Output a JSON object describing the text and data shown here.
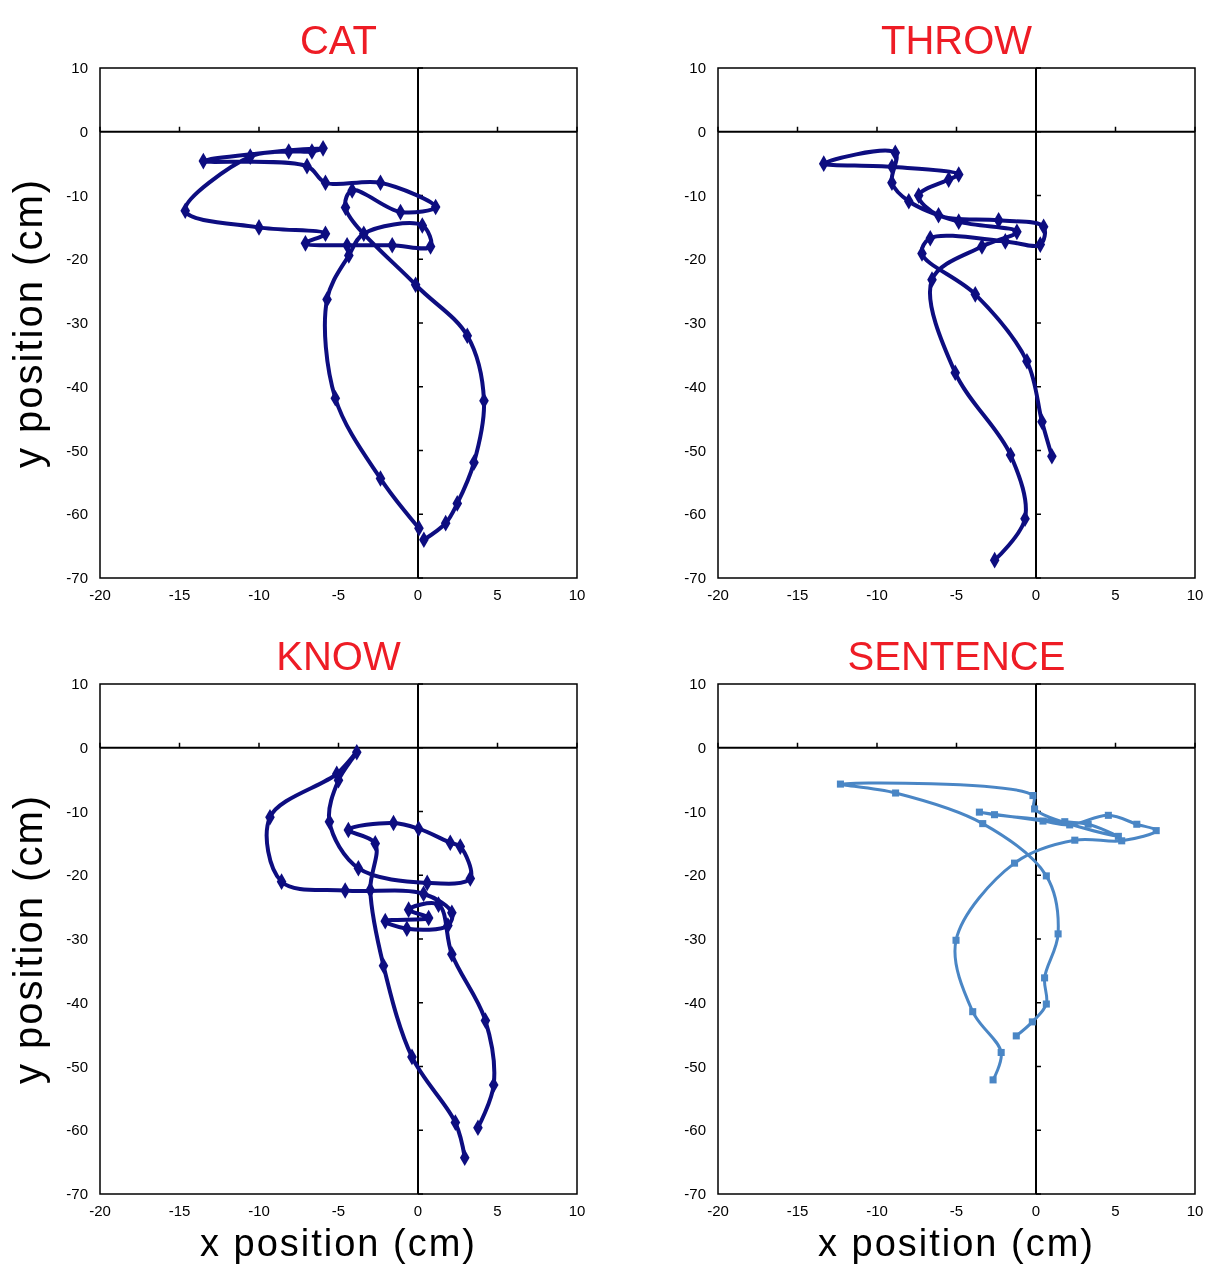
{
  "chart_data": [
    {
      "type": "line",
      "title": "CAT",
      "ylabel": "y position (cm)",
      "color": "#0d0d80",
      "marker": "diamond",
      "xlim": [
        -20,
        10
      ],
      "ylim": [
        -70,
        10
      ],
      "xticks": [
        -20,
        -15,
        -10,
        -5,
        0,
        5,
        10
      ],
      "yticks": [
        -70,
        -60,
        -50,
        -40,
        -30,
        -20,
        -10,
        0,
        10
      ],
      "x": [
        0.06,
        -2.36,
        -5.2,
        -5.72,
        -4.35,
        -3.41,
        0.27,
        0.79,
        -1.62,
        -4.46,
        -7.08,
        -5.82,
        -10.0,
        -14.64,
        -10.55,
        -8.13,
        -6.67,
        -5.97,
        -13.5,
        -6.98,
        -5.82,
        -2.36,
        1.11,
        -1.1,
        -4.14,
        -4.56,
        -0.15,
        3.1,
        4.15,
        3.52,
        2.47,
        1.74,
        0.37
      ],
      "values": [
        -62.2,
        -54.4,
        -41.8,
        -26.3,
        -19.4,
        -16.0,
        -14.7,
        -18.0,
        -17.8,
        -17.8,
        -17.5,
        -16.0,
        -15.0,
        -12.4,
        -3.9,
        -3.1,
        -3.1,
        -2.6,
        -4.6,
        -5.4,
        -8.0,
        -8.0,
        -11.8,
        -12.6,
        -9.2,
        -11.9,
        -24.0,
        -32,
        -42.2,
        -51.9,
        -58.3,
        -61.4,
        -64.0
      ]
    },
    {
      "type": "line",
      "title": "THROW",
      "color": "#0d0d80",
      "marker": "diamond",
      "xlim": [
        -20,
        10
      ],
      "ylim": [
        -70,
        10
      ],
      "xticks": [
        -20,
        -15,
        -10,
        -5,
        0,
        5,
        10
      ],
      "yticks": [
        -70,
        -60,
        -50,
        -40,
        -30,
        -20,
        -10,
        0,
        10
      ],
      "x": [
        -2.6,
        -0.69,
        -1.6,
        -5.08,
        -6.54,
        -3.4,
        -1.2,
        -4.86,
        -8.0,
        -9.06,
        -8.85,
        -13.35,
        -9.06,
        -4.86,
        -5.49,
        -7.38,
        -6.13,
        -2.35,
        0.48,
        0.27,
        -1.93,
        -6.65,
        -7.17,
        -3.82,
        -0.57,
        0.38,
        1.0
      ],
      "values": [
        -67.2,
        -60.7,
        -50.7,
        -37.8,
        -23.2,
        -18.0,
        -15.7,
        -14.1,
        -10.9,
        -8.0,
        -3.3,
        -5.0,
        -5.5,
        -6.7,
        -7.5,
        -10.0,
        -13.1,
        -13.9,
        -14.9,
        -17.7,
        -17.2,
        -16.7,
        -19.1,
        -25.5,
        -36.0,
        -45.5,
        -50.9
      ]
    },
    {
      "type": "line",
      "title": "KNOW",
      "xlabel": "x position (cm)",
      "ylabel": "y position (cm)",
      "color": "#0d0d80",
      "marker": "diamond",
      "xlim": [
        -20,
        10
      ],
      "ylim": [
        -70,
        10
      ],
      "xticks": [
        -20,
        -15,
        -10,
        -5,
        0,
        5,
        10
      ],
      "yticks": [
        -70,
        -60,
        -50,
        -40,
        -30,
        -20,
        -10,
        0,
        10
      ],
      "x": [
        2.94,
        2.35,
        -0.38,
        -2.17,
        -3.0,
        -2.69,
        -4.38,
        -1.54,
        0.04,
        2.03,
        2.66,
        3.29,
        0.58,
        -3.75,
        -5.57,
        -5.0,
        -3.85,
        -5.11,
        -9.31,
        -8.58,
        -4.58,
        0.35,
        2.13,
        1.88,
        -0.7,
        -2.06,
        0.67,
        -0.59,
        1.29,
        2.13,
        4.24,
        4.76,
        3.77
      ],
      "values": [
        -64.3,
        -58.8,
        -48.5,
        -34.2,
        -22.3,
        -15.0,
        -12.9,
        -11.8,
        -12.7,
        -14.9,
        -15.5,
        -20.5,
        -21.2,
        -18.9,
        -11.6,
        -5.1,
        -0.7,
        -4.1,
        -10.9,
        -21.0,
        -22.4,
        -22.9,
        -25.9,
        -27.9,
        -28.4,
        -27.2,
        -26.7,
        -25.4,
        -24.6,
        -32.4,
        -42.8,
        -52.9,
        -59.6
      ]
    },
    {
      "type": "line",
      "title": "SENTENCE",
      "xlabel": "x position (cm)",
      "color": "#4a86c5",
      "marker": "square",
      "xlim": [
        -20,
        10
      ],
      "ylim": [
        -70,
        10
      ],
      "xticks": [
        -20,
        -15,
        -10,
        -5,
        0,
        5,
        10
      ],
      "yticks": [
        -70,
        -60,
        -50,
        -40,
        -30,
        -20,
        -10,
        0,
        10
      ],
      "x": [
        -2.7,
        -2.19,
        -3.98,
        -5.03,
        -1.35,
        2.44,
        5.39,
        7.56,
        6.34,
        4.55,
        2.12,
        0.44,
        -3.56,
        -2.61,
        1.81,
        3.28,
        5.18,
        -0.09,
        -0.19,
        -12.3,
        -8.83,
        -3.35,
        0.65,
        1.39,
        0.54,
        0.65,
        -0.23,
        -1.24
      ],
      "values": [
        -52.1,
        -47.8,
        -41.4,
        -30.2,
        -18.1,
        -14.5,
        -14.6,
        -13.0,
        -12.0,
        -10.6,
        -12.1,
        -11.5,
        -10.1,
        -10.5,
        -11.6,
        -12.0,
        -13.9,
        -9.6,
        -7.5,
        -5.7,
        -7.1,
        -11.9,
        -20.1,
        -29.2,
        -36.1,
        -40.2,
        -43.0,
        -45.2
      ]
    }
  ]
}
